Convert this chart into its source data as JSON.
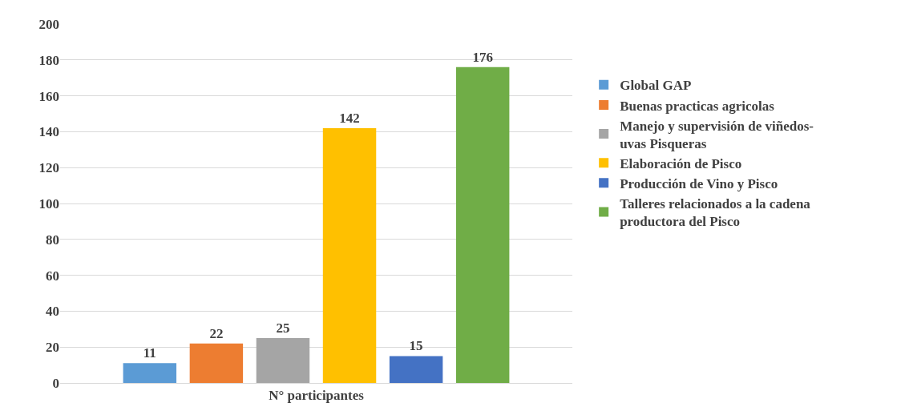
{
  "chart_data": {
    "type": "bar",
    "categories": [
      "N° participantes"
    ],
    "series": [
      {
        "name": "Global GAP",
        "color": "#5b9bd5",
        "values": [
          11
        ]
      },
      {
        "name": "Buenas practicas agricolas",
        "color": "#ed7d31",
        "values": [
          22
        ]
      },
      {
        "name": "Manejo y supervisión de viñedos-uvas Pisqueras",
        "color": "#a5a5a5",
        "values": [
          25
        ]
      },
      {
        "name": "Elaboración de Pisco",
        "color": "#ffc000",
        "values": [
          142
        ]
      },
      {
        "name": "Producción de Vino y Pisco",
        "color": "#4472c4",
        "values": [
          15
        ]
      },
      {
        "name": "Talleres relacionados a la cadena productora del Pisco",
        "color": "#70ad47",
        "values": [
          176
        ]
      }
    ],
    "ylim": [
      0,
      200
    ],
    "yticks": [
      0,
      20,
      40,
      60,
      80,
      100,
      120,
      140,
      160,
      180,
      200
    ],
    "grid": "y",
    "legend": "right",
    "data_labels": true
  }
}
